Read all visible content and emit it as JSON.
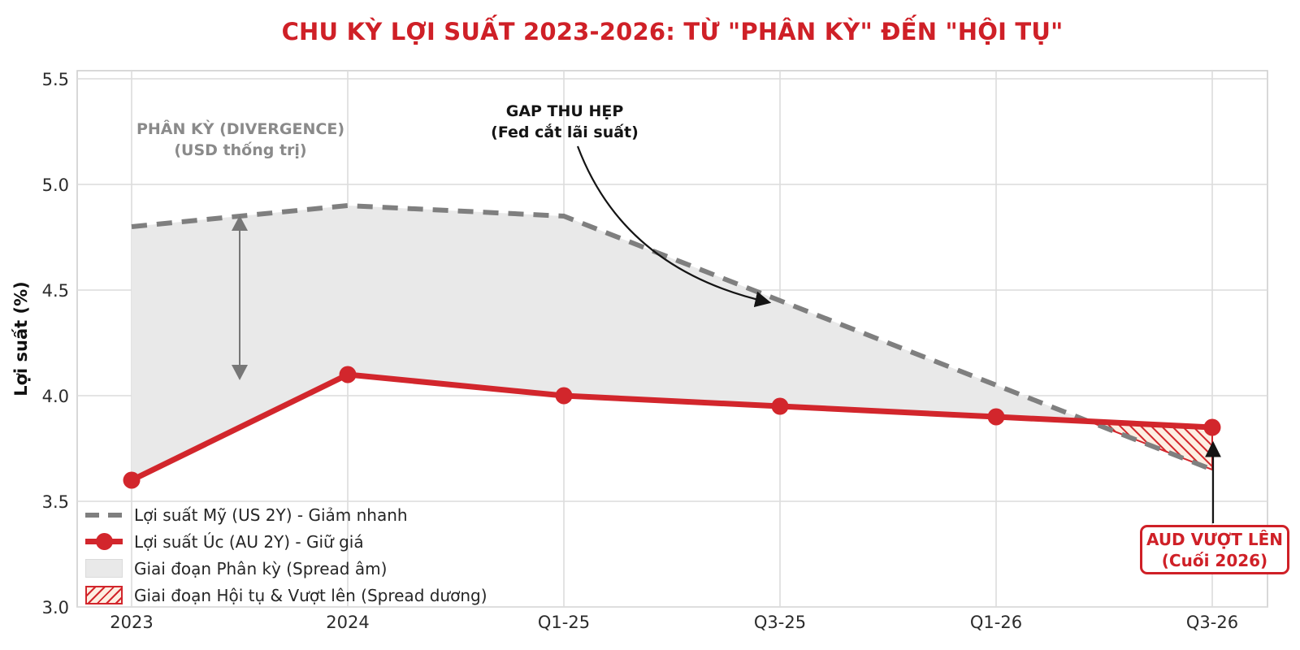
{
  "chart_data": {
    "type": "line",
    "title": "CHU KỲ LỢI SUẤT 2023-2026: TỪ \"PHÂN KỲ\" ĐẾN \"HỘI TỤ\"",
    "ylabel": "Lợi suất (%)",
    "categories": [
      "2023",
      "2024",
      "Q1-25",
      "Q3-25",
      "Q1-26",
      "Q3-26"
    ],
    "series": [
      {
        "name": "Lợi suất Mỹ (US 2Y) - Giảm nhanh",
        "style": "dashed",
        "color": "#7f7f7f",
        "values": [
          4.8,
          4.9,
          4.85,
          4.45,
          4.05,
          3.65
        ]
      },
      {
        "name": "Lợi suất Úc (AU 2Y) - Giữ giá",
        "style": "solid",
        "marker": "circle",
        "color": "#d2262c",
        "values": [
          3.6,
          4.1,
          4.0,
          3.95,
          3.9,
          3.85
        ]
      }
    ],
    "ylim": [
      3.0,
      5.5
    ],
    "yticks": [
      3.0,
      3.5,
      4.0,
      4.5,
      5.0,
      5.5
    ],
    "grid": true,
    "legend_position": "lower-left",
    "legend": [
      "Lợi suất Mỹ (US 2Y) - Giảm nhanh",
      "Lợi suất Úc (AU 2Y) - Giữ giá",
      "Giai đoạn Phân kỳ (Spread âm)",
      "Giai đoạn Hội tụ & Vượt lên (Spread dương)"
    ],
    "fills": [
      {
        "name": "divergence-area",
        "between": [
          "US",
          "AU"
        ],
        "range": [
          "2023",
          "crossing"
        ],
        "color": "#e9e9e9"
      },
      {
        "name": "convergence-area",
        "between": [
          "AU",
          "US"
        ],
        "range": [
          "crossing",
          "Q3-26"
        ],
        "color": "#fdeee2",
        "hatch": "#d2262c"
      }
    ],
    "annotations": {
      "divergence": {
        "line1": "PHÂN KỲ (DIVERGENCE)",
        "line2": "(USD thống trị)"
      },
      "gap": {
        "line1": "GAP THU HẸP",
        "line2": "(Fed cắt lãi suất)"
      },
      "aud": {
        "line1": "AUD VƯỢT LÊN",
        "line2": "(Cuối 2026)"
      }
    },
    "colors": {
      "title_red": "#cf2027",
      "line_red": "#d2262c",
      "line_gray": "#7f7f7f",
      "annotation_gray": "#8a8a8a",
      "divergence_fill": "#e9e9e9",
      "hatch_bg": "#fdeee2",
      "grid": "#dcdcdc"
    }
  }
}
